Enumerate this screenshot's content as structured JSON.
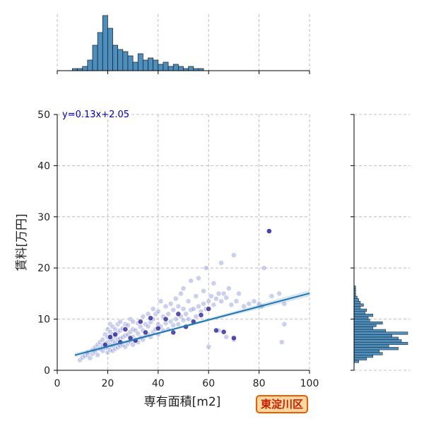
{
  "chart_data": {
    "type": "scatter",
    "xlabel": "専有面積[m2]",
    "ylabel": "賃料[万円]",
    "xlim": [
      0,
      100
    ],
    "ylim": [
      0,
      50
    ],
    "x_ticks": [
      "0",
      "20",
      "40",
      "60",
      "80",
      "100"
    ],
    "y_ticks": [
      "0",
      "10",
      "20",
      "30",
      "40",
      "50"
    ],
    "grid": true,
    "annotation": "y=0.13x+2.05",
    "region_label": "東淀川区",
    "regression": {
      "slope": 0.13,
      "intercept": 2.05,
      "x_range": [
        7,
        100
      ]
    },
    "colors": {
      "points_light": "#8c96dc",
      "points_dark": "#1e1496",
      "regression": "#1f77b4",
      "hist_fill": "#4c8fbf",
      "annotation": "#0000cc"
    },
    "marginal_x_histogram": {
      "bin_start": 6,
      "bin_width": 2,
      "counts": [
        1,
        1,
        2,
        5,
        12,
        18,
        26,
        20,
        12,
        10,
        9,
        7,
        4,
        8,
        5,
        6,
        5,
        3,
        4,
        2,
        3,
        2,
        1,
        2,
        1,
        1,
        0,
        0,
        0,
        0,
        0,
        0,
        0,
        0,
        0,
        0,
        0,
        0,
        0
      ]
    },
    "marginal_y_histogram": {
      "bin_start": 1.5,
      "bin_width": 0.5,
      "counts": [
        3,
        8,
        12,
        18,
        16,
        28,
        22,
        34,
        30,
        28,
        24,
        34,
        20,
        12,
        14,
        18,
        10,
        9,
        12,
        7,
        8,
        4,
        6,
        4,
        3,
        2,
        1,
        1,
        1,
        1
      ]
    },
    "points": [
      [
        9,
        2
      ],
      [
        10,
        2.5
      ],
      [
        11,
        2.8
      ],
      [
        12,
        3
      ],
      [
        12,
        3.5
      ],
      [
        13,
        2.4
      ],
      [
        14,
        3.2
      ],
      [
        14,
        4
      ],
      [
        15,
        3.6
      ],
      [
        15,
        4.5
      ],
      [
        16,
        3
      ],
      [
        16,
        5
      ],
      [
        17,
        4.2
      ],
      [
        17,
        5.5
      ],
      [
        18,
        3.8
      ],
      [
        18,
        4.8
      ],
      [
        18,
        6
      ],
      [
        19,
        4.4
      ],
      [
        19,
        5.2
      ],
      [
        19,
        7
      ],
      [
        20,
        3.5
      ],
      [
        20,
        4.5
      ],
      [
        20,
        5.5
      ],
      [
        20,
        6.5
      ],
      [
        20,
        8
      ],
      [
        21,
        4
      ],
      [
        21,
        5
      ],
      [
        21,
        6
      ],
      [
        21,
        7.5
      ],
      [
        21,
        9
      ],
      [
        22,
        3.8
      ],
      [
        22,
        4.8
      ],
      [
        22,
        5.8
      ],
      [
        22,
        7
      ],
      [
        22,
        8.5
      ],
      [
        23,
        4.2
      ],
      [
        23,
        5.4
      ],
      [
        23,
        6.6
      ],
      [
        23,
        8
      ],
      [
        24,
        4.5
      ],
      [
        24,
        6
      ],
      [
        24,
        7.4
      ],
      [
        24,
        9
      ],
      [
        25,
        4.8
      ],
      [
        25,
        6.2
      ],
      [
        25,
        7.8
      ],
      [
        25,
        9.5
      ],
      [
        26,
        5
      ],
      [
        26,
        6.5
      ],
      [
        26,
        8.2
      ],
      [
        27,
        4.6
      ],
      [
        27,
        6.8
      ],
      [
        27,
        9
      ],
      [
        28,
        5.2
      ],
      [
        28,
        7
      ],
      [
        28,
        8.8
      ],
      [
        29,
        5.6
      ],
      [
        29,
        7.5
      ],
      [
        29,
        10
      ],
      [
        30,
        5
      ],
      [
        30,
        6.5
      ],
      [
        30,
        8
      ],
      [
        30,
        9.5
      ],
      [
        31,
        6
      ],
      [
        31,
        7.8
      ],
      [
        32,
        5.5
      ],
      [
        32,
        7.2
      ],
      [
        32,
        9.2
      ],
      [
        33,
        6.4
      ],
      [
        33,
        8.5
      ],
      [
        34,
        6
      ],
      [
        34,
        7.8
      ],
      [
        34,
        10.5
      ],
      [
        35,
        6.8
      ],
      [
        35,
        9
      ],
      [
        36,
        7
      ],
      [
        36,
        8.6
      ],
      [
        36,
        11
      ],
      [
        37,
        6.5
      ],
      [
        37,
        9.4
      ],
      [
        38,
        7.5
      ],
      [
        38,
        10
      ],
      [
        38,
        12
      ],
      [
        39,
        8
      ],
      [
        39,
        11
      ],
      [
        40,
        7
      ],
      [
        40,
        9
      ],
      [
        40,
        11.5
      ],
      [
        41,
        8.5
      ],
      [
        41,
        13.5
      ],
      [
        42,
        7.8
      ],
      [
        42,
        10.5
      ],
      [
        43,
        9.2
      ],
      [
        43,
        12.5
      ],
      [
        44,
        8
      ],
      [
        44,
        11
      ],
      [
        45,
        9.5
      ],
      [
        45,
        13
      ],
      [
        46,
        8.8
      ],
      [
        46,
        11.8
      ],
      [
        47,
        10
      ],
      [
        47,
        14
      ],
      [
        48,
        9
      ],
      [
        48,
        12.5
      ],
      [
        49,
        10.5
      ],
      [
        49,
        15
      ],
      [
        50,
        9.8
      ],
      [
        50,
        12
      ],
      [
        50,
        16
      ],
      [
        51,
        11
      ],
      [
        52,
        10
      ],
      [
        52,
        13.5
      ],
      [
        53,
        11.8
      ],
      [
        53,
        17.5
      ],
      [
        54,
        12
      ],
      [
        55,
        10.5
      ],
      [
        55,
        14.5
      ],
      [
        56,
        12.5
      ],
      [
        56,
        18
      ],
      [
        57,
        11.5
      ],
      [
        58,
        13
      ],
      [
        58,
        15.5
      ],
      [
        59,
        12
      ],
      [
        59,
        20
      ],
      [
        60,
        13.5
      ],
      [
        60,
        4.6
      ],
      [
        61,
        14.5
      ],
      [
        62,
        12.8
      ],
      [
        62,
        17
      ],
      [
        63,
        14
      ],
      [
        64,
        15
      ],
      [
        64,
        7.8
      ],
      [
        65,
        13.5
      ],
      [
        65,
        21
      ],
      [
        66,
        15
      ],
      [
        67,
        14.2
      ],
      [
        67,
        6.5
      ],
      [
        68,
        16
      ],
      [
        69,
        12.8
      ],
      [
        70,
        22.5
      ],
      [
        70,
        6
      ],
      [
        71,
        13.5
      ],
      [
        72,
        15
      ],
      [
        74,
        12.5
      ],
      [
        76,
        13
      ],
      [
        78,
        13.5
      ],
      [
        80,
        13
      ],
      [
        81,
        12.5
      ],
      [
        82,
        20
      ],
      [
        84,
        27.2
      ],
      [
        85,
        14.5
      ],
      [
        88,
        15
      ],
      [
        89,
        5.5
      ],
      [
        90,
        9
      ],
      [
        90,
        13
      ]
    ],
    "dark_points": [
      [
        19,
        5
      ],
      [
        21,
        6.5
      ],
      [
        23,
        7
      ],
      [
        25,
        5.5
      ],
      [
        27,
        8
      ],
      [
        29,
        6.3
      ],
      [
        31,
        5.8
      ],
      [
        33,
        9.5
      ],
      [
        35,
        7.4
      ],
      [
        37,
        10.2
      ],
      [
        40,
        8.2
      ],
      [
        43,
        10
      ],
      [
        46,
        7.4
      ],
      [
        48,
        11
      ],
      [
        51,
        8.5
      ],
      [
        54,
        9.5
      ],
      [
        57,
        10.8
      ],
      [
        60,
        12
      ],
      [
        63,
        7.8
      ],
      [
        66,
        7.5
      ],
      [
        70,
        6.3
      ],
      [
        84,
        27.2
      ]
    ]
  }
}
